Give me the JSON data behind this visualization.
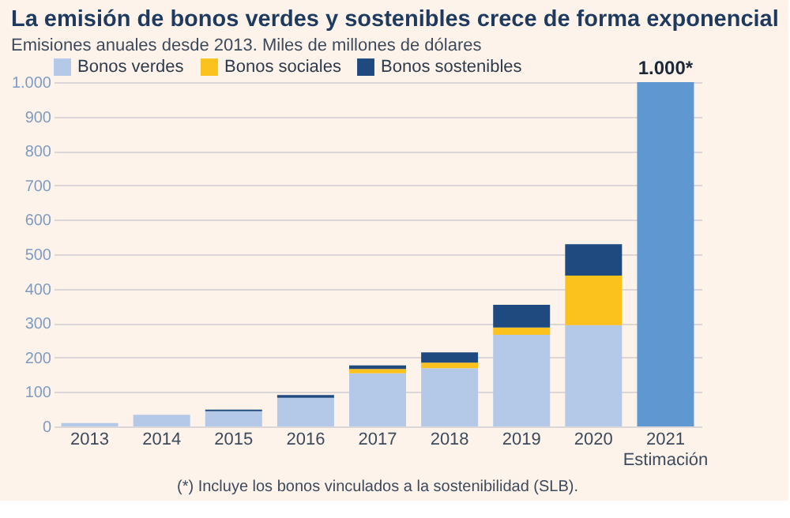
{
  "chart_data": {
    "type": "bar",
    "stacked": true,
    "title": "La emisión de bonos verdes y sostenibles crece de forma exponencial",
    "subtitle": "Emisiones anuales desde 2013. Miles de millones de dólares",
    "categories": [
      "2013",
      "2014",
      "2015",
      "2016",
      "2017",
      "2018",
      "2019",
      "2020",
      "2021\nEstimación"
    ],
    "series": [
      {
        "name": "Bonos verdes",
        "color": "#b4c8e8",
        "values": [
          10,
          34,
          44,
          83,
          154,
          169,
          266,
          294,
          null
        ]
      },
      {
        "name": "Bonos sociales",
        "color": "#fbc21d",
        "values": [
          0,
          0,
          0,
          0,
          13,
          16,
          21,
          144,
          null
        ]
      },
      {
        "name": "Bonos sostenibles",
        "color": "#1f4a80",
        "values": [
          0,
          0,
          5,
          8,
          10,
          30,
          66,
          91,
          null
        ]
      },
      {
        "color": "#5f97d0",
        "values": [
          null,
          null,
          null,
          null,
          null,
          null,
          null,
          null,
          1000
        ],
        "value_labels": [
          null,
          null,
          null,
          null,
          null,
          null,
          null,
          null,
          "1.000*"
        ]
      }
    ],
    "ylim": [
      0,
      1000
    ],
    "yticks": [
      0,
      100,
      200,
      300,
      400,
      500,
      600,
      700,
      800,
      900,
      {
        "value": 1000,
        "label": "1.000"
      }
    ],
    "grid": "y",
    "legend": "top left",
    "annotations": [
      "(*) Incluye los bonos vinculados a la sostenibilidad (SLB)."
    ]
  }
}
